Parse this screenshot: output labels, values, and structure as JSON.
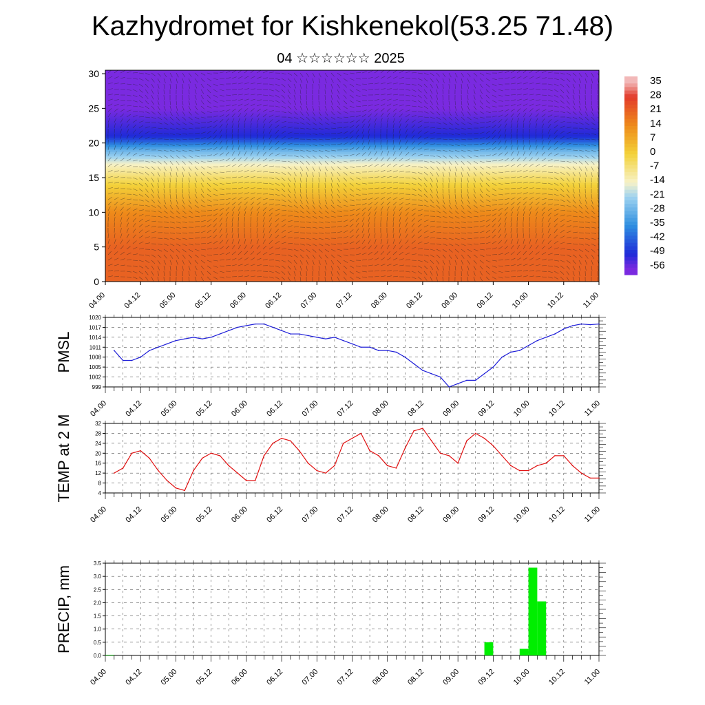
{
  "header": {
    "title": "Kazhydromet for Kishkenekol(53.25 71.48)",
    "subtitle": "04 ☆☆☆☆☆☆ 2025"
  },
  "colors": {
    "pmsl_line": "#1f1fd8",
    "temp_line": "#e01010",
    "precip_bar": "#00ee00",
    "colorbar": [
      "#f2b8b8",
      "#e23a2a",
      "#ee8a1a",
      "#f3d23a",
      "#f7f2c8",
      "#9fd3f0",
      "#2f8fe0",
      "#1e2ad8",
      "#7a2ae0"
    ]
  },
  "chart_data": [
    {
      "type": "heatmap",
      "name": "cross-section",
      "x_ticks": [
        "04.00",
        "04.12",
        "05.00",
        "05.12",
        "06.00",
        "06.12",
        "07.00",
        "07.12",
        "08.00",
        "08.12",
        "09.00",
        "09.12",
        "10.00",
        "10.12",
        "11.00"
      ],
      "y_ticks": [
        0,
        5,
        10,
        15,
        20,
        25,
        30
      ],
      "ylim": [
        0,
        30.5
      ],
      "colorbar_labels": [
        "35",
        "28",
        "21",
        "14",
        "7",
        "0",
        "-7",
        "-14",
        "-21",
        "-28",
        "-35",
        "-42",
        "-49",
        "-56"
      ],
      "temperature_profile": [
        {
          "height": 0,
          "value": 21
        },
        {
          "height": 5,
          "value": 21
        },
        {
          "height": 10,
          "value": 14
        },
        {
          "height": 14,
          "value": 0
        },
        {
          "height": 17,
          "value": -14
        },
        {
          "height": 19,
          "value": -28
        },
        {
          "height": 21,
          "value": -49
        },
        {
          "height": 25,
          "value": -56
        },
        {
          "height": 30.5,
          "value": -56
        }
      ]
    },
    {
      "type": "line",
      "ylabel": "PMSL",
      "x_ticks": [
        "04.00",
        "04.12",
        "05.00",
        "05.12",
        "06.00",
        "06.12",
        "07.00",
        "07.12",
        "08.00",
        "08.12",
        "09.00",
        "09.12",
        "10.00",
        "10.12",
        "11.00"
      ],
      "y_ticks": [
        999,
        1002,
        1005,
        1008,
        1011,
        1014,
        1017,
        1020
      ],
      "ylim": [
        999,
        1020
      ],
      "x": [
        0,
        3,
        6,
        9,
        12,
        15,
        18,
        21,
        24,
        27,
        30,
        33,
        36,
        39,
        42,
        45,
        48,
        51,
        54,
        57,
        60,
        63,
        66,
        69,
        72,
        75,
        78,
        81,
        84,
        87,
        90,
        93,
        96,
        99,
        102,
        105,
        108,
        111,
        114,
        117,
        120,
        123,
        126,
        129,
        132,
        135,
        138,
        141,
        144,
        147,
        150,
        153,
        156,
        159,
        162,
        165
      ],
      "values": [
        1010,
        1007,
        1007,
        1008,
        1010,
        1011,
        1012,
        1013,
        1013.5,
        1014,
        1013.5,
        1014,
        1015,
        1016,
        1017,
        1017.5,
        1018,
        1018,
        1017,
        1016,
        1015,
        1015,
        1014.5,
        1014,
        1013.5,
        1014,
        1013,
        1012,
        1011,
        1011,
        1010,
        1010,
        1009.5,
        1008,
        1006,
        1004,
        1003,
        1002,
        999,
        1000,
        1001,
        1001,
        1003,
        1005,
        1008,
        1009.5,
        1010,
        1011.5,
        1013,
        1014,
        1015,
        1016.5,
        1017.5,
        1018,
        1017.8,
        1018
      ]
    },
    {
      "type": "line",
      "ylabel": "TEMP at 2 M",
      "x_ticks": [
        "04.00",
        "04.12",
        "05.00",
        "05.12",
        "06.00",
        "06.12",
        "07.00",
        "07.12",
        "08.00",
        "08.12",
        "09.00",
        "09.12",
        "10.00",
        "10.12",
        "11.00"
      ],
      "y_ticks": [
        4,
        8,
        12,
        16,
        20,
        24,
        28,
        32
      ],
      "ylim": [
        4,
        32
      ],
      "x": [
        0,
        3,
        6,
        9,
        12,
        15,
        18,
        21,
        24,
        27,
        30,
        33,
        36,
        39,
        42,
        45,
        48,
        51,
        54,
        57,
        60,
        63,
        66,
        69,
        72,
        75,
        78,
        81,
        84,
        87,
        90,
        93,
        96,
        99,
        102,
        105,
        108,
        111,
        114,
        117,
        120,
        123,
        126,
        129,
        132,
        135,
        138,
        141,
        144,
        147,
        150,
        153,
        156,
        159,
        162,
        165
      ],
      "values": [
        12,
        14,
        20,
        21,
        18,
        13,
        9,
        6,
        5,
        13,
        18,
        20,
        19,
        15,
        12,
        9,
        9,
        19,
        24,
        26,
        25,
        21,
        16,
        13,
        12,
        15,
        24,
        26,
        28,
        21,
        19,
        15,
        14,
        22,
        29,
        30,
        25,
        20,
        19,
        16,
        25,
        28,
        26,
        23,
        19,
        15,
        13,
        13,
        15,
        16,
        19,
        19,
        15,
        12,
        10,
        10
      ]
    },
    {
      "type": "bar",
      "ylabel": "PRECIP, mm",
      "x_ticks": [
        "04.00",
        "04.12",
        "05.00",
        "05.12",
        "06.00",
        "06.12",
        "07.00",
        "07.12",
        "08.00",
        "08.12",
        "09.00",
        "09.12",
        "10.00",
        "10.12",
        "11.00"
      ],
      "y_ticks": [
        "0.0",
        "0.5",
        "1.0",
        "1.5",
        "2.0",
        "2.5",
        "3.0",
        "3.5"
      ],
      "ylim": [
        0,
        3.5
      ],
      "bars": [
        {
          "x": 0,
          "value": 0.02
        },
        {
          "x": 129,
          "value": 0.5
        },
        {
          "x": 141,
          "value": 0.25
        },
        {
          "x": 144,
          "value": 3.33
        },
        {
          "x": 147,
          "value": 2.05
        }
      ]
    }
  ]
}
